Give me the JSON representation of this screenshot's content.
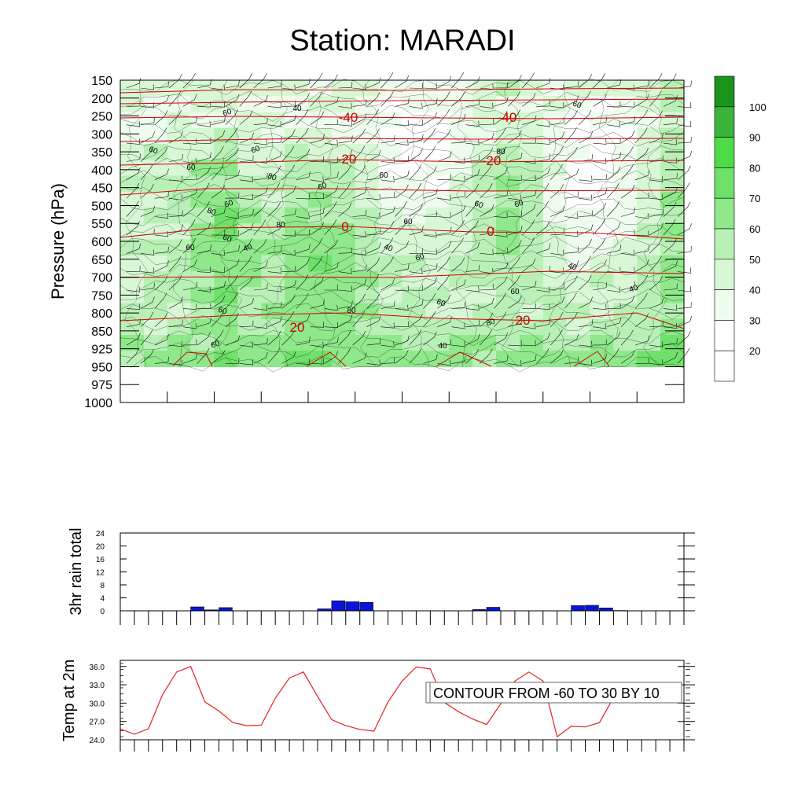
{
  "title": "Station: MARADI",
  "colors": {
    "temp_contour": "#d40000",
    "rain_bar": "#0a14d6",
    "temp_line": "#e3221c",
    "humidity_scale": [
      "#ffffff",
      "#ffffff",
      "#ffffff",
      "#edfced",
      "#d7f7d5",
      "#b9f0b6",
      "#8fe88a",
      "#6fe06a",
      "#4ddc48",
      "#3ab43a",
      "#1b941b"
    ]
  },
  "chart_data": [
    {
      "type": "heatmap",
      "name": "humidity_cross_section",
      "ylabel": "Pressure (hPa)",
      "pressure_levels": [
        150,
        200,
        250,
        300,
        350,
        400,
        450,
        500,
        550,
        600,
        650,
        700,
        750,
        800,
        850,
        925,
        950,
        975,
        1000
      ],
      "legend_levels": [
        20,
        30,
        40,
        50,
        60,
        70,
        80,
        90,
        100
      ],
      "legend_labels": [
        "20",
        "30",
        "40",
        "50",
        "60",
        "70",
        "80",
        "90",
        "100"
      ],
      "humidity_contour_labels": [
        "60",
        "40",
        "60",
        "60",
        "60",
        "80",
        "60",
        "60",
        "80",
        "60",
        "80",
        "60",
        "40",
        "60",
        "40",
        "60",
        "60",
        "60",
        "80",
        "80",
        "60",
        "60",
        "40",
        "40",
        "60",
        "80",
        "60",
        "40",
        "60",
        "60"
      ],
      "temperature_contours": [
        {
          "value": -40,
          "label": "-40"
        },
        {
          "value": -40,
          "label": "-40"
        },
        {
          "value": -20,
          "label": "-20"
        },
        {
          "value": -20,
          "label": "-20"
        },
        {
          "value": 0,
          "label": "0"
        },
        {
          "value": 0,
          "label": "0"
        },
        {
          "value": 20,
          "label": "20"
        },
        {
          "value": 20,
          "label": "20"
        }
      ]
    },
    {
      "type": "bar",
      "name": "rain",
      "ylabel": "3hr rain total",
      "ylim": [
        0,
        24
      ],
      "yticks": [
        0,
        4,
        8,
        12,
        16,
        20,
        24
      ],
      "ytick_labels": [
        "0",
        "4",
        "8",
        "12",
        "16",
        "20",
        "24"
      ],
      "values": [
        0,
        0,
        0,
        0,
        0,
        1.2,
        0.3,
        1.0,
        0,
        0,
        0,
        0,
        0,
        0,
        0.6,
        3.1,
        2.8,
        2.6,
        0,
        0,
        0,
        0,
        0,
        0,
        0,
        0.4,
        1.1,
        0,
        0,
        0,
        0,
        0,
        1.6,
        1.7,
        0.9,
        0.1,
        0,
        0,
        0,
        0
      ]
    },
    {
      "type": "line",
      "name": "temp2m",
      "ylabel": "Temp at 2m",
      "ylim": [
        24,
        37
      ],
      "yticks": [
        24,
        27,
        30,
        33,
        36
      ],
      "ytick_labels": [
        "24.0",
        "27.0",
        "30.0",
        "33.0",
        "36.0"
      ],
      "values": [
        25.8,
        24.9,
        25.8,
        31.4,
        35.1,
        36.0,
        30.2,
        28.7,
        26.8,
        26.3,
        26.4,
        30.8,
        34.1,
        35.1,
        31.1,
        27.3,
        26.3,
        25.7,
        25.4,
        30.2,
        33.6,
        35.9,
        35.6,
        30.1,
        28.6,
        27.4,
        26.5,
        29.9,
        33.6,
        35.1,
        33.6,
        24.5,
        26.2,
        26.1,
        26.8,
        30.9
      ],
      "annotation": "CONTOUR FROM -60 TO 30 BY 10"
    }
  ]
}
